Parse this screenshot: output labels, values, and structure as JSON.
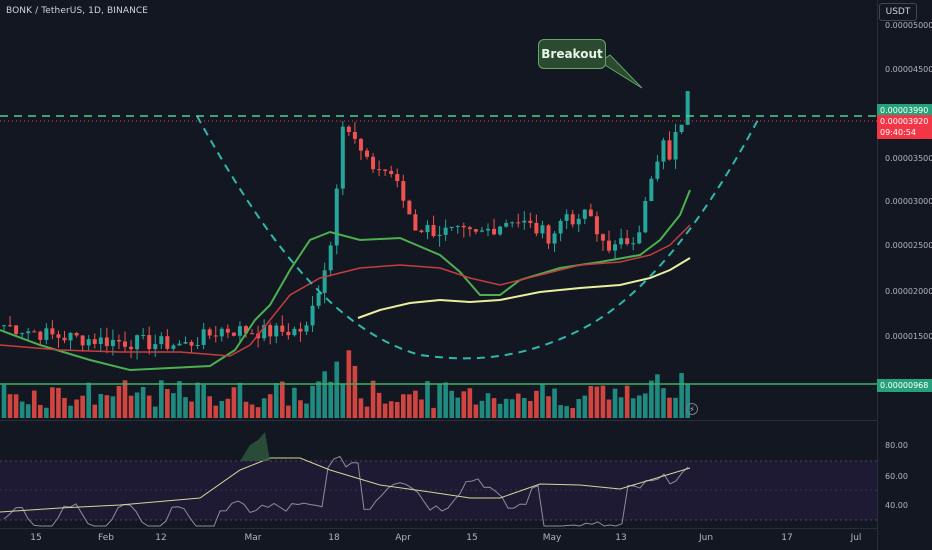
{
  "chart": {
    "symbol_title": "BONK / TetherUS, 1D, BINANCE",
    "currency_button": "USDT",
    "callout_label": "Breakout",
    "price_axis": {
      "ticks": [
        "0.00005000",
        "0.00004500",
        "0.00003500",
        "0.00003000",
        "0.00002500",
        "0.00002000",
        "0.00001500"
      ],
      "tick_values": [
        5.0,
        4.5,
        3.5,
        3.0,
        2.5,
        2.0,
        1.5
      ],
      "unit_note": "values x 1e-5 USDT"
    },
    "price_tags": {
      "resistance": {
        "label": "0.00003990",
        "value": 3.99,
        "color": "#26a17b"
      },
      "last_price": {
        "label": "0.00003920",
        "value": 3.92,
        "color": "#f23645"
      },
      "countdown": {
        "label": "09:40:54",
        "color": "#f23645"
      },
      "volume_level": {
        "label": "0.00000968",
        "color": "#26a17b"
      }
    },
    "rsi_axis": {
      "ticks": [
        "80.00",
        "60.00",
        "40.00"
      ],
      "tick_values": [
        80,
        60,
        40
      ]
    },
    "time_axis": [
      "15",
      "Feb",
      "12",
      "Mar",
      "18",
      "Apr",
      "15",
      "May",
      "13",
      "Jun",
      "17",
      "Jul"
    ],
    "colors": {
      "up": "#26a69a",
      "down": "#ef5350",
      "ma_fast": "#4caf50",
      "ma_mid": "#c53d3d",
      "ma_slow": "#e8f0a0",
      "dashed_cup": "#2fb8ac",
      "background": "#131722"
    }
  }
}
